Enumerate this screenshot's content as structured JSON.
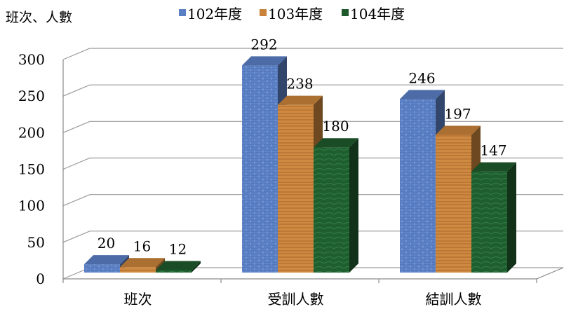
{
  "chart_data": {
    "type": "bar",
    "ylabel": "班次、人數",
    "categories": [
      "班次",
      "受訓人數",
      "結訓人數"
    ],
    "series": [
      {
        "name": "102年度",
        "values": [
          20,
          292,
          246
        ],
        "color": "#5b7fc4"
      },
      {
        "name": "103年度",
        "values": [
          16,
          238,
          197
        ],
        "color": "#c8823a"
      },
      {
        "name": "104年度",
        "values": [
          12,
          180,
          147
        ],
        "color": "#1f5a2c"
      }
    ],
    "ylim": [
      0,
      300
    ],
    "yticks": [
      0,
      50,
      100,
      150,
      200,
      250,
      300
    ],
    "grid": true,
    "legend_position": "top",
    "style": "3d-column"
  }
}
